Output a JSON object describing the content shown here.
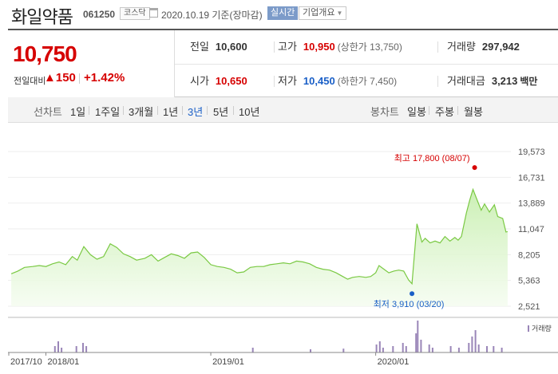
{
  "header": {
    "name": "화일약품",
    "code": "061250",
    "market": "코스닥",
    "date": "2020.10.19 기준(장마감)",
    "realtime": "실시간",
    "company": "기업개요",
    "caret": "▼"
  },
  "summary": {
    "price": "10,750",
    "change_label": "전일대비",
    "change_arrow": "▲",
    "change_value": "150",
    "change_rate": "+1.42%",
    "prev_label": "전일",
    "prev_value": "10,600",
    "high_label": "고가",
    "high_value": "10,950",
    "upper_limit": "(상한가 13,750)",
    "volume_label": "거래량",
    "volume_value": "297,942",
    "open_label": "시가",
    "open_value": "10,650",
    "low_label": "저가",
    "low_value": "10,450",
    "lower_limit": "(하한가 7,450)",
    "amount_label": "거래대금",
    "amount_value": "3,213",
    "amount_unit": "백만"
  },
  "period_bar": {
    "label": "선차트",
    "items": [
      "1일",
      "1주일",
      "3개월",
      "1년",
      "3년",
      "5년",
      "10년"
    ],
    "active": "3년",
    "candle_label": "봉차트",
    "candle_items": [
      "일봉",
      "주봉",
      "월봉"
    ]
  },
  "colors": {
    "up": "#d60000",
    "down": "#1a5fc7",
    "line": "#7ac943",
    "volume": "#9a86b8"
  },
  "chart_data": {
    "type": "area",
    "price_ticks": [
      19573,
      16731,
      13889,
      11047,
      8205,
      5363,
      2521
    ],
    "ylim": [
      2521,
      19573
    ],
    "x_labels": [
      "2017/10",
      "2018/01",
      "2019/01",
      "2020/01"
    ],
    "volume_label": "거래량",
    "max_annotation": {
      "label": "최고",
      "value": "17,800",
      "date": "(08/07)",
      "price": 17800,
      "t": 2020.6
    },
    "min_annotation": {
      "label": "최저",
      "value": "3,910",
      "date": "(03/20)",
      "price": 3910,
      "t": 2020.22
    },
    "series": [
      {
        "values": [
          [
            2017.79,
            6100
          ],
          [
            2017.83,
            6400
          ],
          [
            2017.87,
            6800
          ],
          [
            2017.92,
            6900
          ],
          [
            2017.96,
            7000
          ],
          [
            2018.0,
            6900
          ],
          [
            2018.04,
            7200
          ],
          [
            2018.08,
            7400
          ],
          [
            2018.12,
            7100
          ],
          [
            2018.16,
            8000
          ],
          [
            2018.19,
            7600
          ],
          [
            2018.23,
            9100
          ],
          [
            2018.27,
            8200
          ],
          [
            2018.31,
            7700
          ],
          [
            2018.35,
            8000
          ],
          [
            2018.39,
            9400
          ],
          [
            2018.43,
            9000
          ],
          [
            2018.47,
            8300
          ],
          [
            2018.51,
            8000
          ],
          [
            2018.55,
            7600
          ],
          [
            2018.6,
            7800
          ],
          [
            2018.64,
            8200
          ],
          [
            2018.68,
            7500
          ],
          [
            2018.72,
            7900
          ],
          [
            2018.76,
            8300
          ],
          [
            2018.8,
            8100
          ],
          [
            2018.84,
            7800
          ],
          [
            2018.88,
            8400
          ],
          [
            2018.92,
            8500
          ],
          [
            2018.96,
            7900
          ],
          [
            2019.0,
            7100
          ],
          [
            2019.04,
            6900
          ],
          [
            2019.08,
            6800
          ],
          [
            2019.12,
            6600
          ],
          [
            2019.16,
            6200
          ],
          [
            2019.2,
            6300
          ],
          [
            2019.24,
            6800
          ],
          [
            2019.28,
            6900
          ],
          [
            2019.32,
            6900
          ],
          [
            2019.36,
            7100
          ],
          [
            2019.4,
            7200
          ],
          [
            2019.44,
            7300
          ],
          [
            2019.48,
            7200
          ],
          [
            2019.52,
            7500
          ],
          [
            2019.56,
            7400
          ],
          [
            2019.6,
            7200
          ],
          [
            2019.64,
            6800
          ],
          [
            2019.68,
            6600
          ],
          [
            2019.72,
            6500
          ],
          [
            2019.76,
            6200
          ],
          [
            2019.8,
            5800
          ],
          [
            2019.83,
            5500
          ],
          [
            2019.86,
            5700
          ],
          [
            2019.9,
            5800
          ],
          [
            2019.94,
            5700
          ],
          [
            2019.97,
            5800
          ],
          [
            2020.0,
            6200
          ],
          [
            2020.02,
            7000
          ],
          [
            2020.05,
            6600
          ],
          [
            2020.08,
            6200
          ],
          [
            2020.11,
            6400
          ],
          [
            2020.14,
            6500
          ],
          [
            2020.17,
            6400
          ],
          [
            2020.2,
            5400
          ],
          [
            2020.22,
            5000
          ],
          [
            2020.25,
            11600
          ],
          [
            2020.28,
            9600
          ],
          [
            2020.3,
            10000
          ],
          [
            2020.33,
            9500
          ],
          [
            2020.36,
            9700
          ],
          [
            2020.39,
            9500
          ],
          [
            2020.42,
            10200
          ],
          [
            2020.45,
            9700
          ],
          [
            2020.48,
            10100
          ],
          [
            2020.5,
            9800
          ],
          [
            2020.52,
            10200
          ],
          [
            2020.55,
            12800
          ],
          [
            2020.57,
            14200
          ],
          [
            2020.59,
            15400
          ],
          [
            2020.62,
            14000
          ],
          [
            2020.64,
            13100
          ],
          [
            2020.66,
            13800
          ],
          [
            2020.69,
            12900
          ],
          [
            2020.72,
            13700
          ],
          [
            2020.74,
            12400
          ],
          [
            2020.77,
            12200
          ],
          [
            2020.79,
            10700
          ],
          [
            2020.8,
            10750
          ]
        ]
      }
    ],
    "volume": [
      [
        2018.05,
        0.2
      ],
      [
        2018.07,
        0.35
      ],
      [
        2018.09,
        0.15
      ],
      [
        2018.18,
        0.2
      ],
      [
        2018.22,
        0.3
      ],
      [
        2018.24,
        0.2
      ],
      [
        2019.25,
        0.15
      ],
      [
        2019.6,
        0.1
      ],
      [
        2019.8,
        0.12
      ],
      [
        2020.0,
        0.25
      ],
      [
        2020.02,
        0.35
      ],
      [
        2020.04,
        0.15
      ],
      [
        2020.1,
        0.2
      ],
      [
        2020.16,
        0.3
      ],
      [
        2020.18,
        0.2
      ],
      [
        2020.24,
        0.6
      ],
      [
        2020.25,
        1.0
      ],
      [
        2020.27,
        0.4
      ],
      [
        2020.32,
        0.25
      ],
      [
        2020.34,
        0.15
      ],
      [
        2020.45,
        0.2
      ],
      [
        2020.5,
        0.15
      ],
      [
        2020.56,
        0.3
      ],
      [
        2020.58,
        0.5
      ],
      [
        2020.6,
        0.7
      ],
      [
        2020.62,
        0.25
      ],
      [
        2020.67,
        0.2
      ],
      [
        2020.71,
        0.2
      ],
      [
        2020.76,
        0.15
      ]
    ]
  }
}
